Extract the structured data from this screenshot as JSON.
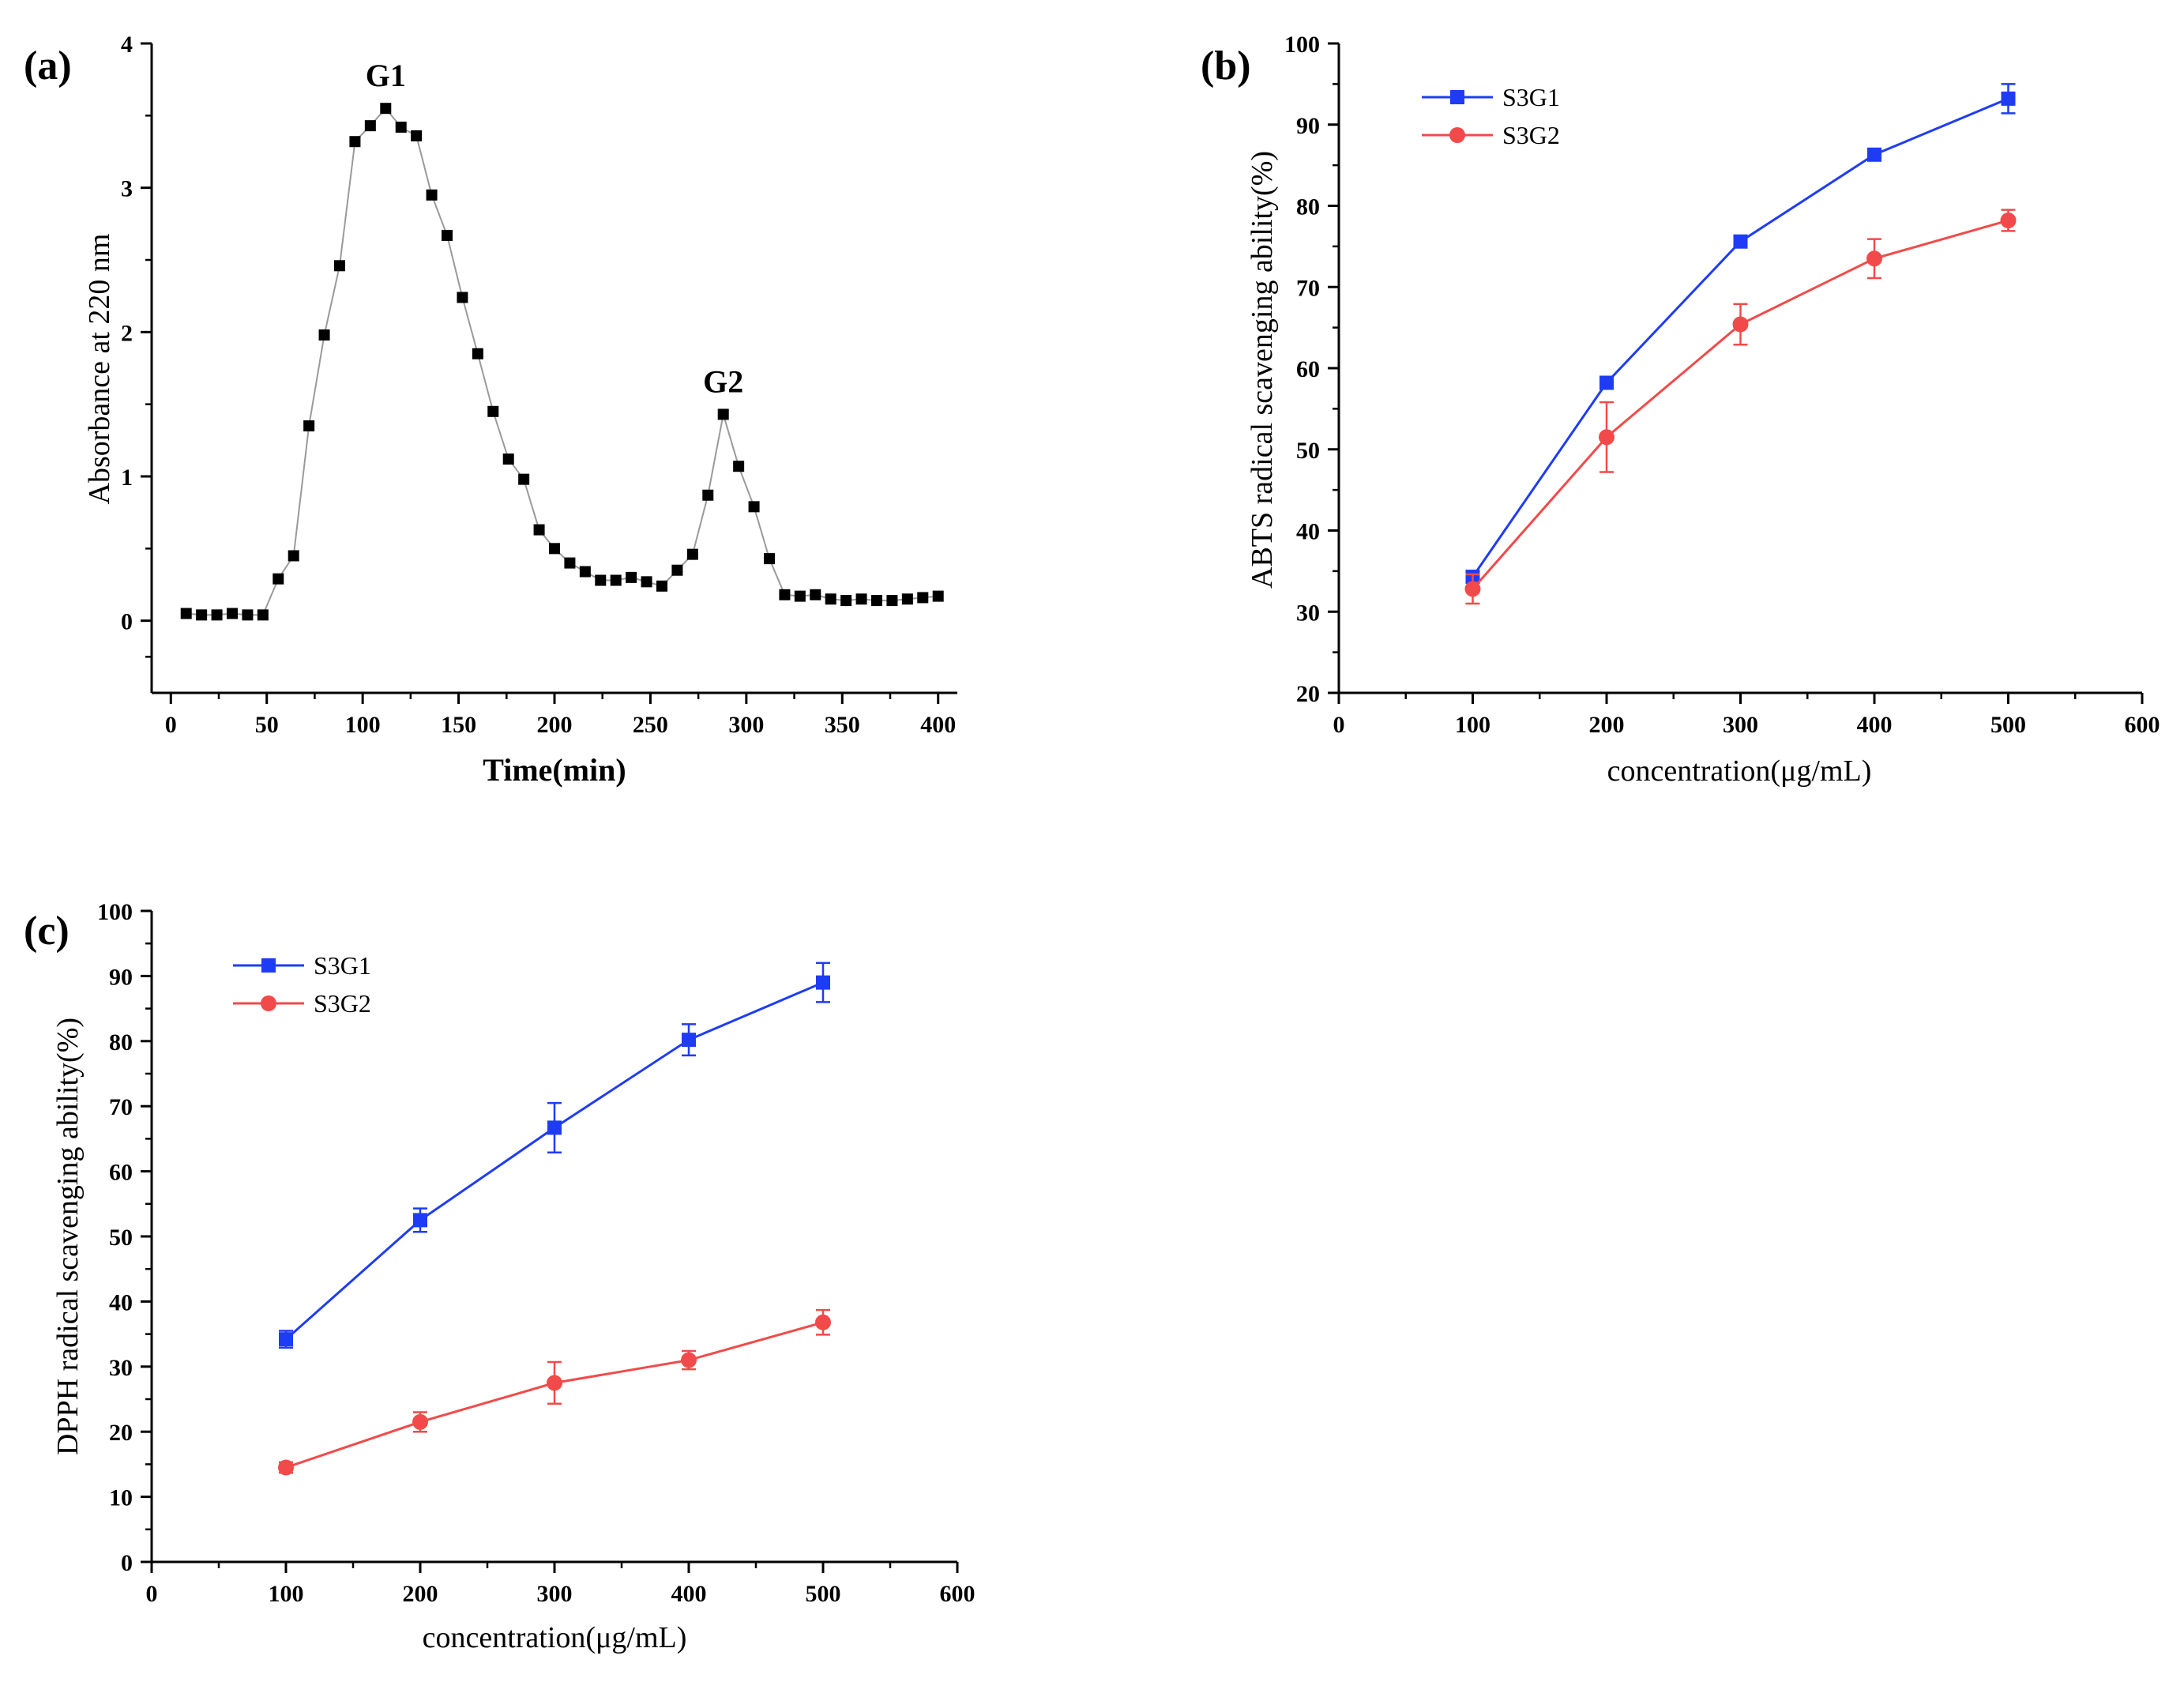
{
  "chart_data": [
    {
      "panel": "(a)",
      "type": "line",
      "title": "",
      "xlabel": "Time(min)",
      "ylabel": "Absorbance at 220 nm",
      "xlim": [
        -10,
        410
      ],
      "ylim": [
        -0.5,
        4
      ],
      "xticks": [
        0,
        50,
        100,
        150,
        200,
        250,
        300,
        350,
        400
      ],
      "yticks": [
        0,
        1,
        2,
        3,
        4
      ],
      "grid": false,
      "annotations": [
        {
          "text": "G1",
          "x": 112,
          "y": 3.55
        },
        {
          "text": "G2",
          "x": 288,
          "y": 1.43
        }
      ],
      "series": [
        {
          "name": "",
          "color": "#000000",
          "marker": "square",
          "x": [
            8,
            16,
            24,
            32,
            40,
            48,
            56,
            64,
            72,
            80,
            88,
            96,
            104,
            112,
            120,
            128,
            136,
            144,
            152,
            160,
            168,
            176,
            184,
            192,
            200,
            208,
            216,
            224,
            232,
            240,
            248,
            256,
            264,
            272,
            280,
            288,
            296,
            304,
            312,
            320,
            328,
            336,
            344,
            352,
            360,
            368,
            376,
            384,
            392,
            400
          ],
          "y": [
            0.05,
            0.04,
            0.04,
            0.05,
            0.04,
            0.04,
            0.29,
            0.45,
            1.35,
            1.98,
            2.46,
            3.32,
            3.43,
            3.55,
            3.42,
            3.36,
            2.95,
            2.67,
            2.24,
            1.85,
            1.45,
            1.12,
            0.98,
            0.63,
            0.5,
            0.4,
            0.34,
            0.28,
            0.28,
            0.3,
            0.27,
            0.24,
            0.35,
            0.46,
            0.87,
            1.43,
            1.07,
            0.79,
            0.43,
            0.18,
            0.17,
            0.18,
            0.15,
            0.14,
            0.15,
            0.14,
            0.14,
            0.15,
            0.16,
            0.17
          ]
        }
      ]
    },
    {
      "panel": "(b)",
      "type": "line",
      "title": "",
      "xlabel": "concentration(μg/mL)",
      "ylabel": "ABTS radical scavenging ability(%)",
      "xlim": [
        0,
        600
      ],
      "ylim": [
        20,
        100
      ],
      "xticks": [
        0,
        100,
        200,
        300,
        400,
        500,
        600
      ],
      "yticks": [
        20,
        30,
        40,
        50,
        60,
        70,
        80,
        90,
        100
      ],
      "grid": false,
      "legend_position": "top-left",
      "series": [
        {
          "name": "S3G1",
          "color": "#1f3cf5",
          "marker": "square",
          "x": [
            100,
            200,
            300,
            400,
            500
          ],
          "y": [
            34.3,
            58.2,
            75.6,
            86.3,
            93.2
          ],
          "error": [
            0.4,
            0.6,
            0.5,
            0.5,
            1.8
          ]
        },
        {
          "name": "S3G2",
          "color": "#f24a4a",
          "marker": "circle",
          "x": [
            100,
            200,
            300,
            400,
            500
          ],
          "y": [
            32.8,
            51.5,
            65.4,
            73.5,
            78.2
          ],
          "error": [
            1.8,
            4.3,
            2.5,
            2.4,
            1.3
          ]
        }
      ]
    },
    {
      "panel": "(c)",
      "type": "line",
      "title": "",
      "xlabel": "concentration(μg/mL)",
      "ylabel": "DPPH radical scavenging ability(%)",
      "xlim": [
        0,
        600
      ],
      "ylim": [
        0,
        100
      ],
      "xticks": [
        0,
        100,
        200,
        300,
        400,
        500,
        600
      ],
      "yticks": [
        0,
        10,
        20,
        30,
        40,
        50,
        60,
        70,
        80,
        90,
        100
      ],
      "grid": false,
      "legend_position": "top-left",
      "series": [
        {
          "name": "S3G1",
          "color": "#1f3cf5",
          "marker": "square",
          "x": [
            100,
            200,
            300,
            400,
            500
          ],
          "y": [
            34.2,
            52.5,
            66.7,
            80.2,
            89.0
          ],
          "error": [
            1.3,
            1.8,
            3.8,
            2.4,
            3.0
          ]
        },
        {
          "name": "S3G2",
          "color": "#f24a4a",
          "marker": "circle",
          "x": [
            100,
            200,
            300,
            400,
            500
          ],
          "y": [
            14.5,
            21.5,
            27.5,
            31.0,
            36.8
          ],
          "error": [
            0.8,
            1.5,
            3.2,
            1.4,
            1.9
          ]
        }
      ]
    }
  ]
}
